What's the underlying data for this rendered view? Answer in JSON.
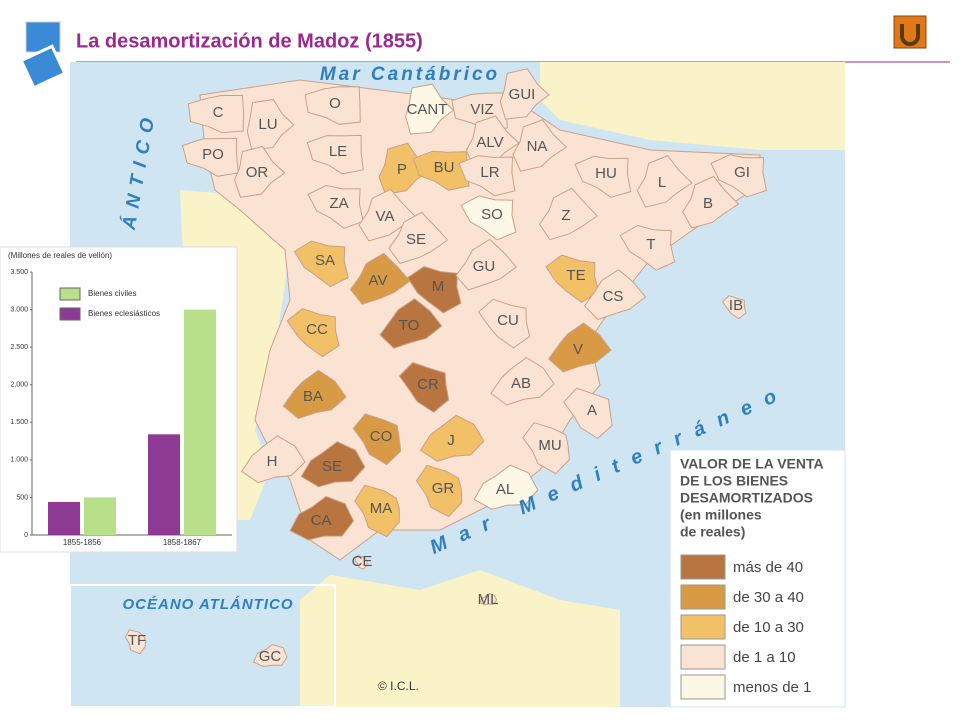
{
  "header": {
    "title": "La desamortización de Madoz (1855)"
  },
  "map": {
    "seas": [
      "Mar Cantábrico",
      "ÁNTICO",
      "Mar Mediterráneo",
      "OCÉANO ATLÁNTICO"
    ],
    "copyright": "© I.C.L.",
    "provinces": [
      {
        "label": "C",
        "color": "#fbe3d3"
      },
      {
        "label": "LU",
        "color": "#fbe3d3"
      },
      {
        "label": "O",
        "color": "#fbe3d3"
      },
      {
        "label": "CANT",
        "color": "#fdf7e6"
      },
      {
        "label": "VIZ",
        "color": "#fbe3d3"
      },
      {
        "label": "GUI",
        "color": "#fbe3d3"
      },
      {
        "label": "PO",
        "color": "#fbe3d3"
      },
      {
        "label": "OR",
        "color": "#fbe3d3"
      },
      {
        "label": "LE",
        "color": "#fbe3d3"
      },
      {
        "label": "P",
        "color": "#f2c066"
      },
      {
        "label": "BU",
        "color": "#f2c066"
      },
      {
        "label": "ALV",
        "color": "#fbe3d3"
      },
      {
        "label": "LR",
        "color": "#fbe3d3"
      },
      {
        "label": "NA",
        "color": "#fbe3d3"
      },
      {
        "label": "HU",
        "color": "#fbe3d3"
      },
      {
        "label": "L",
        "color": "#fbe3d3"
      },
      {
        "label": "GI",
        "color": "#fbe3d3"
      },
      {
        "label": "B",
        "color": "#fbe3d3"
      },
      {
        "label": "ZA",
        "color": "#fbe3d3"
      },
      {
        "label": "VA",
        "color": "#fbe3d3"
      },
      {
        "label": "SO",
        "color": "#fdf7e6"
      },
      {
        "label": "Z",
        "color": "#fbe3d3"
      },
      {
        "label": "T",
        "color": "#fbe3d3"
      },
      {
        "label": "SE",
        "color": "#fbe3d3"
      },
      {
        "label": "SA",
        "color": "#f2c066"
      },
      {
        "label": "AV",
        "color": "#d99a45"
      },
      {
        "label": "M",
        "color": "#b87540"
      },
      {
        "label": "GU",
        "color": "#fbe3d3"
      },
      {
        "label": "TE",
        "color": "#f2c066"
      },
      {
        "label": "CS",
        "color": "#fbe3d3"
      },
      {
        "label": "CC",
        "color": "#f2c066"
      },
      {
        "label": "TO",
        "color": "#b87540"
      },
      {
        "label": "CU",
        "color": "#fbe3d3"
      },
      {
        "label": "V",
        "color": "#d99a45"
      },
      {
        "label": "IB",
        "color": "#fbe3d3"
      },
      {
        "label": "BA",
        "color": "#d99a45"
      },
      {
        "label": "CR",
        "color": "#b87540"
      },
      {
        "label": "AB",
        "color": "#fbe3d3"
      },
      {
        "label": "A",
        "color": "#fbe3d3"
      },
      {
        "label": "H",
        "color": "#fbe3d3"
      },
      {
        "label": "CO",
        "color": "#d99a45"
      },
      {
        "label": "J",
        "color": "#f2c066"
      },
      {
        "label": "MU",
        "color": "#fbe3d3"
      },
      {
        "label": "SE",
        "color": "#b87540"
      },
      {
        "label": "GR",
        "color": "#f2c066"
      },
      {
        "label": "AL",
        "color": "#fdf7e6"
      },
      {
        "label": "MA",
        "color": "#f2c066"
      },
      {
        "label": "CA",
        "color": "#b87540"
      },
      {
        "label": "CE",
        "color": "#fbe3d3"
      },
      {
        "label": "ML",
        "color": "#fbe3d3"
      },
      {
        "label": "TF",
        "color": "#fbe3d3"
      },
      {
        "label": "GC",
        "color": "#fbe3d3"
      }
    ]
  },
  "legend": {
    "title": [
      "VALOR DE LA VENTA",
      "DE LOS BIENES",
      "DESAMORTIZADOS",
      "(en millones",
      "de reales)"
    ],
    "items": [
      {
        "label": "más de 40",
        "color": "#b87540"
      },
      {
        "label": "de 30 a 40",
        "color": "#d99a45"
      },
      {
        "label": "de 10 a 30",
        "color": "#f2c066"
      },
      {
        "label": "de 1 a 10",
        "color": "#fbe3d3"
      },
      {
        "label": "menos de 1",
        "color": "#fdf7e6"
      }
    ]
  },
  "chart_data": {
    "type": "bar",
    "y_label": "(Millones de reales de vellón)",
    "categories": [
      "1855-1856",
      "1858-1867"
    ],
    "series": [
      {
        "name": "Bienes civiles",
        "color": "#b8e08a",
        "values": [
          500,
          3000
        ]
      },
      {
        "name": "Bienes eclesiásticos",
        "color": "#8e3a93",
        "values": [
          440,
          1340
        ]
      }
    ],
    "ylim": [
      0,
      3500
    ],
    "yticks": [
      0,
      500,
      {
        "value": 1000,
        "label": "1.000"
      },
      {
        "value": 1500,
        "label": "1.500"
      },
      {
        "value": 2000,
        "label": "2.000"
      },
      {
        "value": 2500,
        "label": "2.500"
      },
      {
        "value": 3000,
        "label": "3.000"
      },
      {
        "value": 3500,
        "label": "3.500"
      }
    ]
  }
}
